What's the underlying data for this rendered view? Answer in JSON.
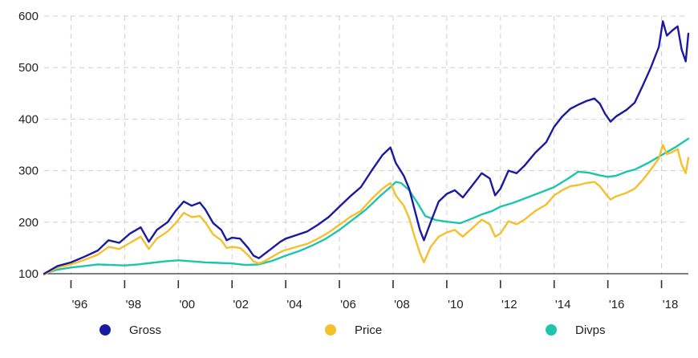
{
  "chart_data": {
    "type": "line",
    "title": "",
    "xlabel": "",
    "ylabel": "",
    "xlim": [
      1995.0,
      2019.0
    ],
    "ylim": [
      100,
      600
    ],
    "y_ticks": [
      100,
      200,
      300,
      400,
      500,
      600
    ],
    "y_tick_labels": [
      "100",
      "200",
      "300",
      "400",
      "500",
      "600"
    ],
    "x_ticks": [
      1996,
      1998,
      2000,
      2002,
      2004,
      2006,
      2008,
      2010,
      2012,
      2014,
      2016,
      2018
    ],
    "x_tick_labels": [
      "'96",
      "'98",
      "'00",
      "'02",
      "'04",
      "'06",
      "'08",
      "'10",
      "'12",
      "'14",
      "'16",
      "'18"
    ],
    "grid": true,
    "legend_position": "bottom",
    "series": [
      {
        "name": "Gross",
        "color": "#1a1aa0",
        "points": [
          [
            1995.0,
            100
          ],
          [
            1995.5,
            115
          ],
          [
            1996.0,
            122
          ],
          [
            1996.5,
            133
          ],
          [
            1997.0,
            145
          ],
          [
            1997.4,
            165
          ],
          [
            1997.8,
            160
          ],
          [
            1998.2,
            178
          ],
          [
            1998.6,
            190
          ],
          [
            1998.9,
            162
          ],
          [
            1999.2,
            185
          ],
          [
            1999.6,
            200
          ],
          [
            1999.9,
            222
          ],
          [
            2000.2,
            240
          ],
          [
            2000.5,
            232
          ],
          [
            2000.8,
            238
          ],
          [
            2001.0,
            225
          ],
          [
            2001.3,
            198
          ],
          [
            2001.6,
            185
          ],
          [
            2001.8,
            165
          ],
          [
            2002.0,
            170
          ],
          [
            2002.3,
            168
          ],
          [
            2002.6,
            150
          ],
          [
            2002.8,
            135
          ],
          [
            2003.0,
            130
          ],
          [
            2003.2,
            138
          ],
          [
            2003.5,
            150
          ],
          [
            2003.8,
            162
          ],
          [
            2004.0,
            168
          ],
          [
            2004.4,
            175
          ],
          [
            2004.8,
            182
          ],
          [
            2005.2,
            195
          ],
          [
            2005.6,
            210
          ],
          [
            2006.0,
            230
          ],
          [
            2006.4,
            250
          ],
          [
            2006.8,
            268
          ],
          [
            2007.2,
            300
          ],
          [
            2007.6,
            330
          ],
          [
            2007.9,
            345
          ],
          [
            2008.1,
            315
          ],
          [
            2008.4,
            290
          ],
          [
            2008.6,
            265
          ],
          [
            2008.8,
            225
          ],
          [
            2009.0,
            185
          ],
          [
            2009.15,
            165
          ],
          [
            2009.4,
            200
          ],
          [
            2009.7,
            240
          ],
          [
            2010.0,
            255
          ],
          [
            2010.3,
            262
          ],
          [
            2010.6,
            248
          ],
          [
            2010.9,
            268
          ],
          [
            2011.3,
            295
          ],
          [
            2011.6,
            285
          ],
          [
            2011.8,
            252
          ],
          [
            2012.0,
            265
          ],
          [
            2012.3,
            300
          ],
          [
            2012.6,
            295
          ],
          [
            2012.9,
            310
          ],
          [
            2013.3,
            335
          ],
          [
            2013.7,
            355
          ],
          [
            2014.0,
            385
          ],
          [
            2014.3,
            405
          ],
          [
            2014.6,
            420
          ],
          [
            2014.9,
            428
          ],
          [
            2015.2,
            435
          ],
          [
            2015.5,
            440
          ],
          [
            2015.7,
            430
          ],
          [
            2015.9,
            410
          ],
          [
            2016.1,
            395
          ],
          [
            2016.3,
            405
          ],
          [
            2016.7,
            418
          ],
          [
            2017.0,
            432
          ],
          [
            2017.3,
            465
          ],
          [
            2017.6,
            500
          ],
          [
            2017.9,
            540
          ],
          [
            2018.05,
            590
          ],
          [
            2018.2,
            562
          ],
          [
            2018.4,
            572
          ],
          [
            2018.6,
            580
          ],
          [
            2018.75,
            535
          ],
          [
            2018.9,
            512
          ],
          [
            2019.0,
            566
          ]
        ]
      },
      {
        "name": "Price",
        "color": "#f5c02c",
        "points": [
          [
            1995.0,
            98
          ],
          [
            1995.5,
            112
          ],
          [
            1996.0,
            118
          ],
          [
            1996.5,
            127
          ],
          [
            1997.0,
            137
          ],
          [
            1997.4,
            152
          ],
          [
            1997.8,
            148
          ],
          [
            1998.2,
            160
          ],
          [
            1998.6,
            172
          ],
          [
            1998.9,
            148
          ],
          [
            1999.2,
            168
          ],
          [
            1999.6,
            182
          ],
          [
            1999.9,
            198
          ],
          [
            2000.2,
            218
          ],
          [
            2000.5,
            210
          ],
          [
            2000.8,
            212
          ],
          [
            2001.0,
            200
          ],
          [
            2001.3,
            176
          ],
          [
            2001.6,
            165
          ],
          [
            2001.8,
            150
          ],
          [
            2002.0,
            152
          ],
          [
            2002.3,
            150
          ],
          [
            2002.6,
            136
          ],
          [
            2002.8,
            124
          ],
          [
            2003.0,
            120
          ],
          [
            2003.2,
            124
          ],
          [
            2003.5,
            133
          ],
          [
            2003.8,
            142
          ],
          [
            2004.0,
            146
          ],
          [
            2004.4,
            152
          ],
          [
            2004.8,
            158
          ],
          [
            2005.2,
            168
          ],
          [
            2005.6,
            180
          ],
          [
            2006.0,
            195
          ],
          [
            2006.4,
            210
          ],
          [
            2006.8,
            222
          ],
          [
            2007.2,
            245
          ],
          [
            2007.6,
            265
          ],
          [
            2007.9,
            276
          ],
          [
            2008.1,
            252
          ],
          [
            2008.4,
            232
          ],
          [
            2008.6,
            208
          ],
          [
            2008.8,
            172
          ],
          [
            2009.0,
            140
          ],
          [
            2009.15,
            122
          ],
          [
            2009.4,
            152
          ],
          [
            2009.7,
            172
          ],
          [
            2010.0,
            180
          ],
          [
            2010.3,
            185
          ],
          [
            2010.6,
            172
          ],
          [
            2010.9,
            186
          ],
          [
            2011.3,
            205
          ],
          [
            2011.6,
            196
          ],
          [
            2011.8,
            172
          ],
          [
            2012.0,
            178
          ],
          [
            2012.3,
            202
          ],
          [
            2012.6,
            196
          ],
          [
            2012.9,
            205
          ],
          [
            2013.3,
            222
          ],
          [
            2013.7,
            234
          ],
          [
            2014.0,
            252
          ],
          [
            2014.3,
            262
          ],
          [
            2014.6,
            270
          ],
          [
            2014.9,
            272
          ],
          [
            2015.2,
            276
          ],
          [
            2015.5,
            278
          ],
          [
            2015.7,
            270
          ],
          [
            2015.9,
            256
          ],
          [
            2016.1,
            244
          ],
          [
            2016.3,
            250
          ],
          [
            2016.7,
            257
          ],
          [
            2017.0,
            265
          ],
          [
            2017.3,
            282
          ],
          [
            2017.6,
            302
          ],
          [
            2017.9,
            324
          ],
          [
            2018.05,
            350
          ],
          [
            2018.2,
            332
          ],
          [
            2018.4,
            336
          ],
          [
            2018.6,
            342
          ],
          [
            2018.75,
            312
          ],
          [
            2018.9,
            295
          ],
          [
            2019.0,
            325
          ]
        ]
      },
      {
        "name": "Divps",
        "color": "#1fc4ad",
        "points": [
          [
            1995.0,
            100
          ],
          [
            1995.5,
            108
          ],
          [
            1996.0,
            112
          ],
          [
            1996.5,
            115
          ],
          [
            1997.0,
            118
          ],
          [
            1997.5,
            117
          ],
          [
            1998.0,
            116
          ],
          [
            1998.5,
            118
          ],
          [
            1999.0,
            121
          ],
          [
            1999.5,
            124
          ],
          [
            2000.0,
            126
          ],
          [
            2000.5,
            124
          ],
          [
            2001.0,
            122
          ],
          [
            2001.5,
            121
          ],
          [
            2002.0,
            120
          ],
          [
            2002.5,
            117
          ],
          [
            2003.0,
            118
          ],
          [
            2003.5,
            125
          ],
          [
            2004.0,
            135
          ],
          [
            2004.5,
            144
          ],
          [
            2005.0,
            155
          ],
          [
            2005.5,
            168
          ],
          [
            2006.0,
            185
          ],
          [
            2006.5,
            205
          ],
          [
            2007.0,
            225
          ],
          [
            2007.5,
            250
          ],
          [
            2007.9,
            268
          ],
          [
            2008.1,
            278
          ],
          [
            2008.3,
            276
          ],
          [
            2008.6,
            262
          ],
          [
            2008.9,
            238
          ],
          [
            2009.2,
            212
          ],
          [
            2009.6,
            204
          ],
          [
            2010.0,
            201
          ],
          [
            2010.5,
            198
          ],
          [
            2010.9,
            206
          ],
          [
            2011.3,
            215
          ],
          [
            2011.7,
            222
          ],
          [
            2012.0,
            230
          ],
          [
            2012.5,
            238
          ],
          [
            2013.0,
            248
          ],
          [
            2013.5,
            258
          ],
          [
            2014.0,
            268
          ],
          [
            2014.5,
            284
          ],
          [
            2014.9,
            298
          ],
          [
            2015.3,
            296
          ],
          [
            2015.7,
            291
          ],
          [
            2016.0,
            288
          ],
          [
            2016.3,
            290
          ],
          [
            2016.7,
            298
          ],
          [
            2017.0,
            302
          ],
          [
            2017.5,
            315
          ],
          [
            2018.0,
            330
          ],
          [
            2018.5,
            345
          ],
          [
            2019.0,
            362
          ]
        ]
      }
    ]
  }
}
